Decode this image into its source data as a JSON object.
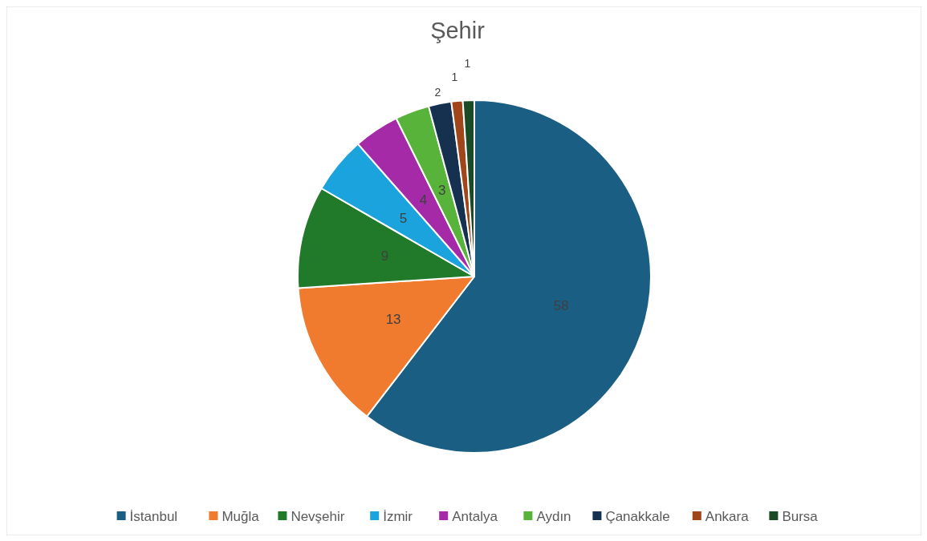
{
  "chart_data": {
    "type": "pie",
    "title": "Şehir",
    "categories": [
      "İstanbul",
      "Muğla",
      "Nevşehir",
      "İzmir",
      "Antalya",
      "Aydın",
      "Çanakkale",
      "Ankara",
      "Bursa"
    ],
    "values": [
      58,
      13,
      9,
      5,
      4,
      3,
      2,
      1,
      1
    ],
    "colors": [
      "#1b5e84",
      "#f07a2e",
      "#217a2a",
      "#1aa3dc",
      "#a42aa8",
      "#58b33a",
      "#15314f",
      "#a0461a",
      "#1a4a26"
    ],
    "data_labels": true,
    "legend": "bottom"
  }
}
